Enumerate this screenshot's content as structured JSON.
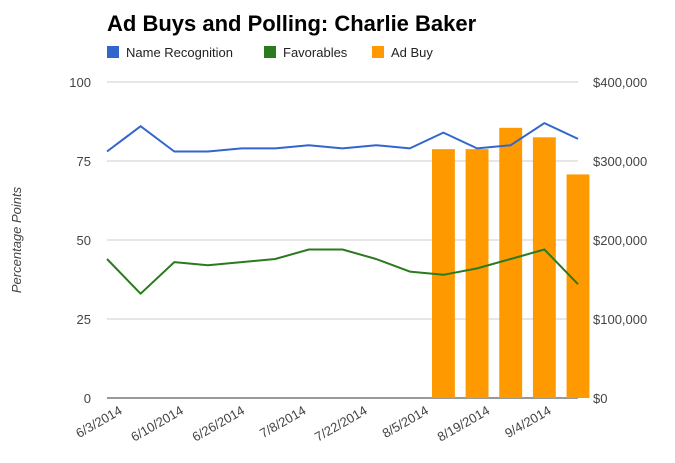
{
  "chart_data": {
    "type": "bar+line",
    "title": "Ad Buys and Polling: Charlie Baker",
    "ylabel": "Percentage Points",
    "ylim": [
      0,
      100
    ],
    "yticks": [
      0,
      25,
      50,
      75,
      100
    ],
    "y2lim": [
      0,
      400000
    ],
    "y2ticks": [
      "$0",
      "$100,000",
      "$200,000",
      "$300,000",
      "$400,000"
    ],
    "x_tick_labels": [
      "6/3/2014",
      "6/10/2014",
      "6/26/2014",
      "7/8/2014",
      "7/22/2014",
      "8/5/2014",
      "8/19/2014",
      "9/4/2014"
    ],
    "grid": true,
    "legend_position": "top",
    "series": [
      {
        "name": "Name Recognition",
        "type": "line",
        "axis": "left",
        "color": "#3366cc",
        "values": [
          78,
          86,
          78,
          78,
          79,
          79,
          80,
          79,
          80,
          79,
          84,
          79,
          80,
          87,
          82
        ]
      },
      {
        "name": "Favorables",
        "type": "line",
        "axis": "left",
        "color": "#2a7a1e",
        "values": [
          44,
          33,
          43,
          42,
          43,
          44,
          47,
          47,
          44,
          40,
          39,
          41,
          44,
          47,
          36
        ]
      },
      {
        "name": "Ad Buy",
        "type": "bar",
        "axis": "right",
        "color": "#ff9900",
        "values": [
          null,
          null,
          null,
          null,
          null,
          null,
          null,
          null,
          null,
          null,
          315000,
          315000,
          342000,
          330000,
          283000
        ]
      }
    ]
  }
}
